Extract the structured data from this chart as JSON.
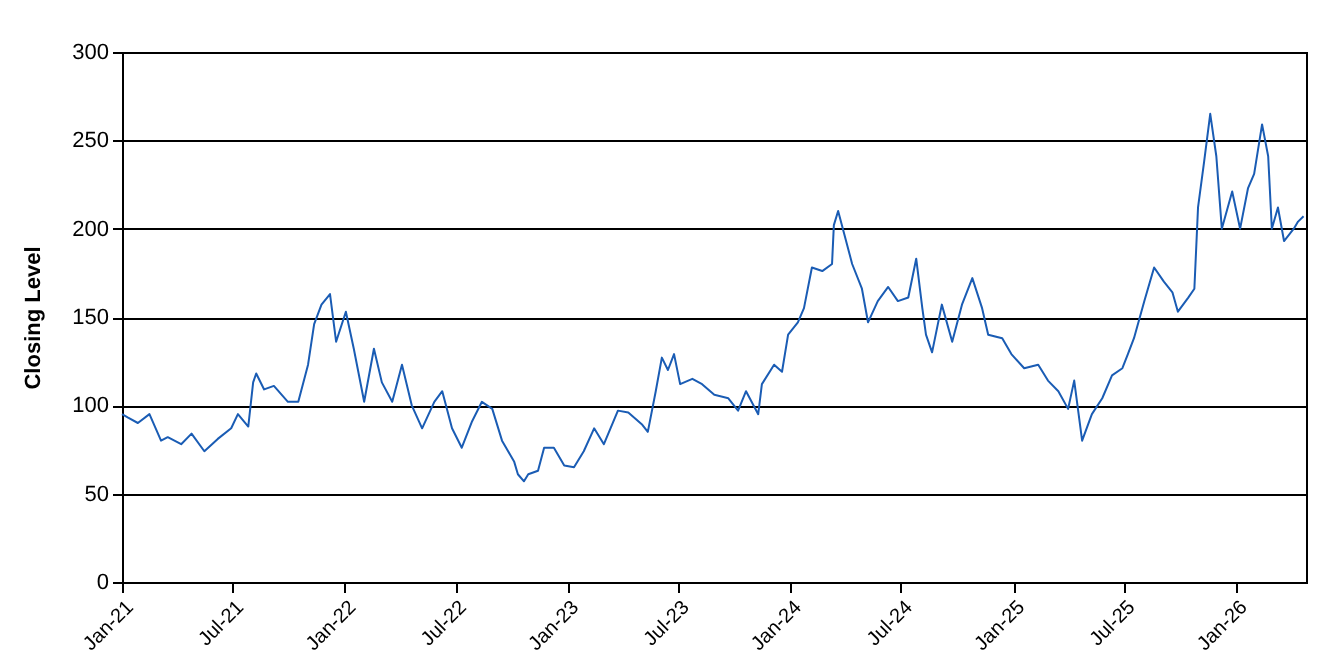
{
  "chart_data": {
    "type": "line",
    "ylabel": "Closing Level",
    "xlim": [
      "2021-01-01",
      "2026-04-26"
    ],
    "ylim": [
      0,
      300
    ],
    "yticks": [
      0,
      50,
      100,
      150,
      200,
      250,
      300
    ],
    "xticks": [
      {
        "value": "2021-01-01",
        "label": "Jan-21"
      },
      {
        "value": "2021-07-01",
        "label": "Jul-21"
      },
      {
        "value": "2022-01-01",
        "label": "Jan-22"
      },
      {
        "value": "2022-07-01",
        "label": "Jul-22"
      },
      {
        "value": "2023-01-01",
        "label": "Jan-23"
      },
      {
        "value": "2023-07-01",
        "label": "Jul-23"
      },
      {
        "value": "2024-01-01",
        "label": "Jan-24"
      },
      {
        "value": "2024-07-01",
        "label": "Jul-24"
      },
      {
        "value": "2025-01-01",
        "label": "Jan-25"
      },
      {
        "value": "2025-07-01",
        "label": "Jul-25"
      },
      {
        "value": "2026-01-01",
        "label": "Jan-26"
      }
    ],
    "grid": "y",
    "marker": "none",
    "line_style": "solid",
    "x": [
      "2021-01-01",
      "2021-01-11",
      "2021-01-27",
      "2021-02-15",
      "2021-03-06",
      "2021-03-17",
      "2021-04-08",
      "2021-04-25",
      "2021-05-16",
      "2021-06-07",
      "2021-06-29",
      "2021-07-10",
      "2021-07-27",
      "2021-08-04",
      "2021-08-09",
      "2021-08-22",
      "2021-09-07",
      "2021-09-30",
      "2021-10-17",
      "2021-11-02",
      "2021-11-12",
      "2021-11-24",
      "2021-12-08",
      "2021-12-18",
      "2022-01-03",
      "2022-01-16",
      "2022-02-02",
      "2022-02-18",
      "2022-03-03",
      "2022-03-20",
      "2022-04-05",
      "2022-04-21",
      "2022-05-08",
      "2022-05-28",
      "2022-06-10",
      "2022-06-26",
      "2022-07-12",
      "2022-07-29",
      "2022-08-14",
      "2022-08-31",
      "2022-09-16",
      "2022-10-06",
      "2022-10-12",
      "2022-10-22",
      "2022-10-29",
      "2022-11-14",
      "2022-11-24",
      "2022-12-10",
      "2022-12-27",
      "2023-01-12",
      "2023-01-28",
      "2023-02-14",
      "2023-03-02",
      "2023-03-25",
      "2023-04-11",
      "2023-05-04",
      "2023-05-13",
      "2023-05-26",
      "2023-06-05",
      "2023-06-15",
      "2023-06-25",
      "2023-07-05",
      "2023-07-25",
      "2023-08-10",
      "2023-08-30",
      "2023-09-22",
      "2023-10-08",
      "2023-10-21",
      "2023-11-10",
      "2023-11-16",
      "2023-12-06",
      "2023-12-19",
      "2023-12-29",
      "2024-01-14",
      "2024-01-24",
      "2024-02-06",
      "2024-02-23",
      "2024-03-10",
      "2024-03-13",
      "2024-03-20",
      "2024-03-30",
      "2024-04-12",
      "2024-04-28",
      "2024-05-08",
      "2024-05-24",
      "2024-06-10",
      "2024-06-26",
      "2024-07-13",
      "2024-07-26",
      "2024-08-05",
      "2024-08-11",
      "2024-08-21",
      "2024-09-06",
      "2024-09-23",
      "2024-10-09",
      "2024-10-26",
      "2024-11-11",
      "2024-11-21",
      "2024-12-14",
      "2024-12-29",
      "2025-01-19",
      "2025-02-11",
      "2025-02-27",
      "2025-03-16",
      "2025-04-01",
      "2025-04-11",
      "2025-04-24",
      "2025-05-10",
      "2025-05-27",
      "2025-06-12",
      "2025-06-29",
      "2025-07-08",
      "2025-07-18",
      "2025-08-04",
      "2025-08-20",
      "2025-09-05",
      "2025-09-19",
      "2025-09-28",
      "2025-10-15",
      "2025-10-25",
      "2025-10-31",
      "2025-11-10",
      "2025-11-20",
      "2025-11-30",
      "2025-12-09",
      "2025-12-26",
      "2026-01-08",
      "2026-01-21",
      "2026-01-31",
      "2026-02-13",
      "2026-02-23",
      "2026-03-01",
      "2026-03-11",
      "2026-03-21",
      "2026-04-06",
      "2026-04-13",
      "2026-04-22"
    ],
    "series": [
      {
        "color": "#1a5cb4",
        "values": [
          95,
          93,
          90,
          95,
          80,
          82,
          78,
          84,
          74,
          81,
          87,
          95,
          88,
          113,
          118,
          109,
          111,
          102,
          102,
          123,
          146,
          157,
          163,
          136,
          153,
          132,
          102,
          132,
          113,
          102,
          123,
          100,
          87,
          102,
          108,
          87,
          76,
          91,
          102,
          98,
          80,
          68,
          61,
          57,
          61,
          63,
          76,
          76,
          66,
          65,
          74,
          87,
          78,
          97,
          96,
          89,
          85,
          108,
          127,
          120,
          129,
          112,
          115,
          112,
          106,
          104,
          97,
          108,
          95,
          112,
          123,
          119,
          140,
          147,
          155,
          178,
          176,
          180,
          202,
          210,
          197,
          180,
          166,
          147,
          159,
          167,
          159,
          161,
          183,
          155,
          140,
          130,
          157,
          136,
          157,
          172,
          155,
          140,
          138,
          129,
          121,
          123,
          114,
          108,
          98,
          114,
          80,
          95,
          104,
          117,
          121,
          129,
          138,
          159,
          178,
          170,
          164,
          153,
          161,
          166,
          212,
          238,
          265,
          241,
          200,
          221,
          200,
          223,
          231,
          259,
          241,
          200,
          212,
          193,
          200,
          204,
          207
        ]
      }
    ]
  }
}
